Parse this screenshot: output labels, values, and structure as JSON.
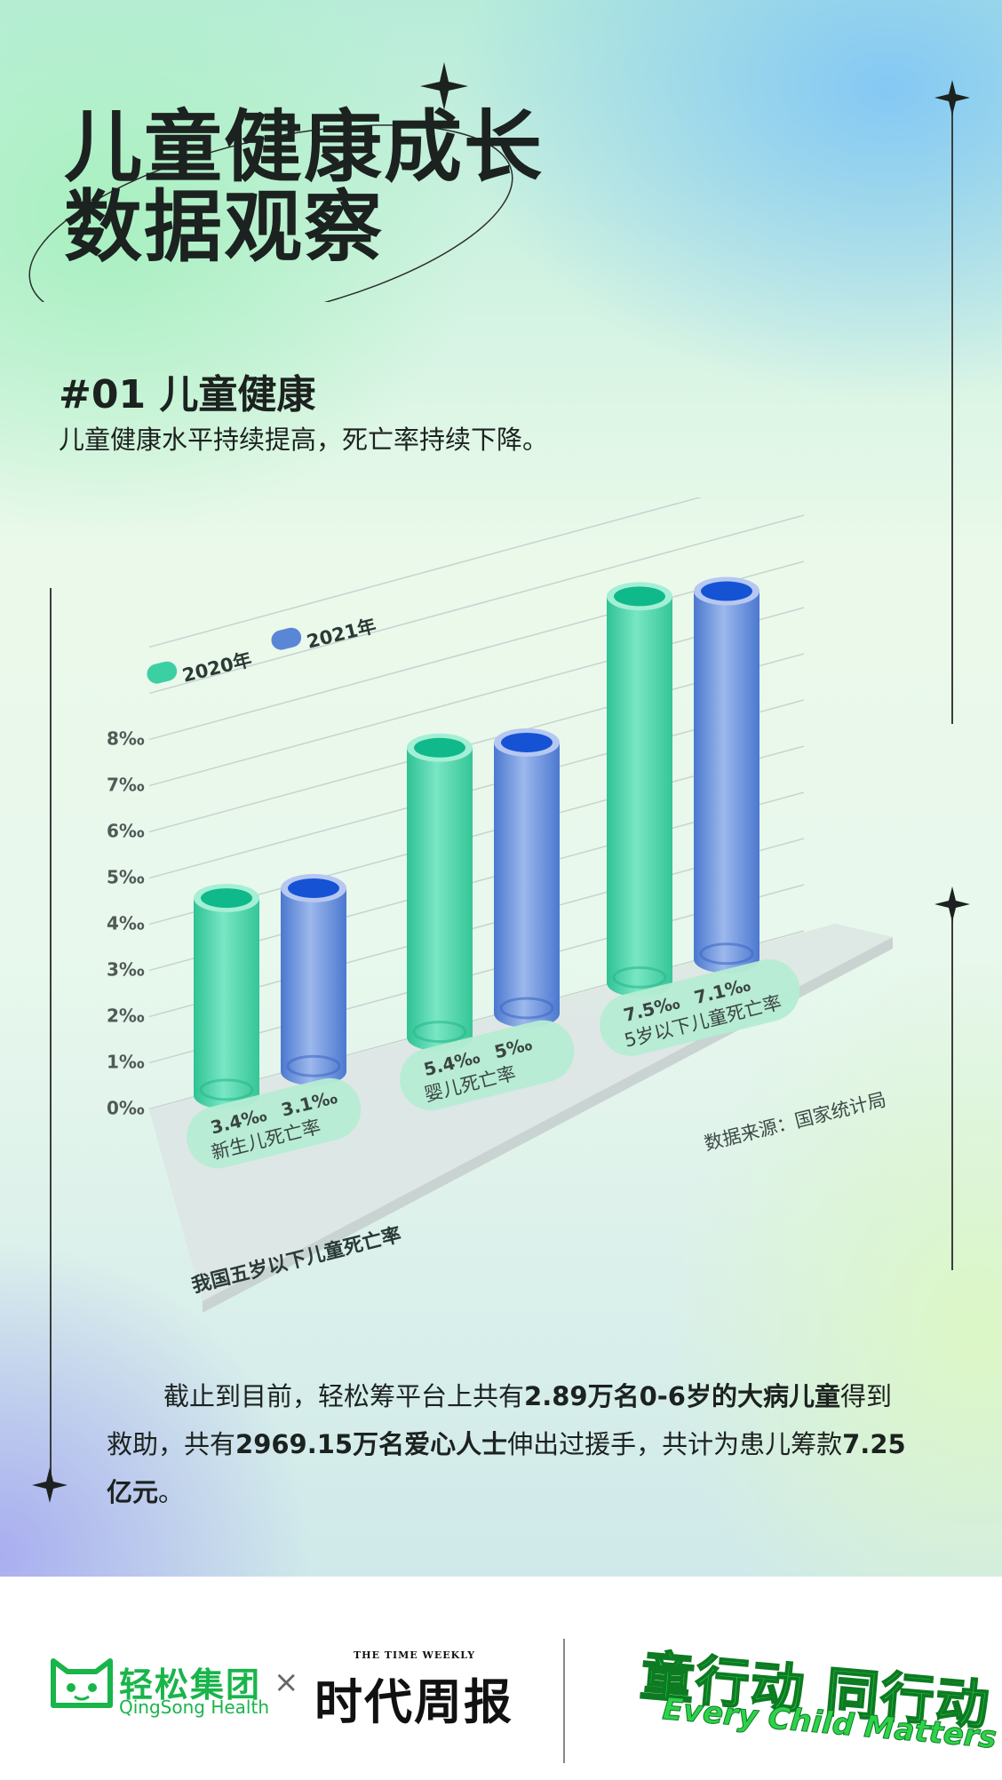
{
  "title": {
    "line1": "儿童健康成长",
    "line2": "数据观察"
  },
  "section": {
    "number_title": "#01 儿童健康",
    "subtitle": "儿童健康水平持续提高，死亡率持续下降。"
  },
  "chart_data": {
    "type": "bar",
    "title": "我国五岁以下儿童死亡率",
    "source": "数据来源：国家统计局",
    "categories": [
      "新生儿死亡率",
      "婴儿死亡率",
      "5岁以下儿童死亡率"
    ],
    "series": [
      {
        "name": "2020年",
        "values": [
          3.4,
          5.4,
          7.5
        ],
        "labels": [
          "3.4‰",
          "5.4‰",
          "7.5‰"
        ],
        "color": "#3ccfa4"
      },
      {
        "name": "2021年",
        "values": [
          3.1,
          5.0,
          7.1
        ],
        "labels": [
          "3.1‰",
          "5‰",
          "7.1‰"
        ],
        "color": "#5a86d6"
      }
    ],
    "yticks": [
      "0‰",
      "1‰",
      "2‰",
      "3‰",
      "4‰",
      "5‰",
      "6‰",
      "7‰",
      "8‰"
    ],
    "ylim": [
      0,
      8
    ],
    "grid": true,
    "legend": "top-left"
  },
  "summary": {
    "p1": "截止到目前，轻松筹平台上共有",
    "b1": "2.89万名0-6岁的大病儿童",
    "p2": "得到救助，共有",
    "b2": "2969.15万名爱心人士",
    "p3": "伸出过援手，共计为患儿筹款",
    "b3": "7.25亿元",
    "p4": "。"
  },
  "footer": {
    "qingsong_cn": "轻松集团",
    "qingsong_en": "QingSong Health",
    "times_symbol": "×",
    "weekly_en": "THE TIME WEEKLY",
    "weekly_cn": "时代周报",
    "slogan_cn": "童行动 同行动",
    "slogan_en": "Every Child Matters"
  },
  "colors": {
    "green": "#3ccfa4",
    "blue": "#5a86d6",
    "brand_green": "#19b54a"
  }
}
